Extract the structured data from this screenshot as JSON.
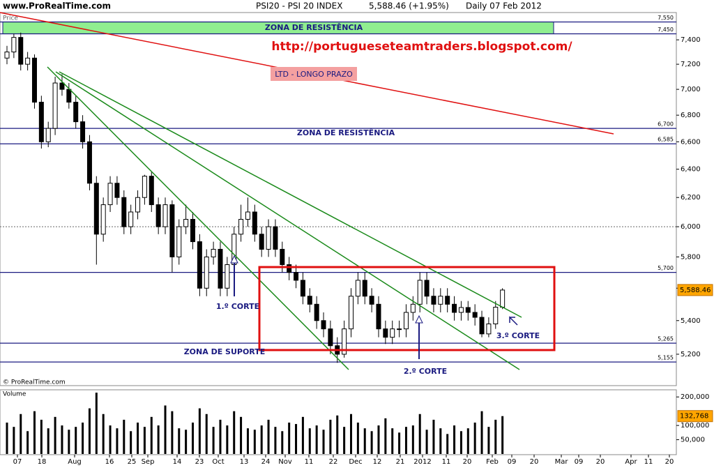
{
  "header": {
    "site": "www.ProRealTime.com",
    "instrument": "PSI20 - PSI 20 INDEX",
    "quote": "5,588.46 (+1.95%)",
    "period": "Daily  07 Feb 2012"
  },
  "chart_data": {
    "type": "candlestick",
    "log_scale": true,
    "panel_label": "Price",
    "volume_label": "Volume",
    "copyright": "© ProRealTime.com",
    "ylim": [
      5020,
      7630
    ],
    "yticks": [
      {
        "value": 5200,
        "label": "5,200"
      },
      {
        "value": 5400,
        "label": "5,400"
      },
      {
        "value": 5600,
        "label": "5,600"
      },
      {
        "value": 5800,
        "label": "5,800"
      },
      {
        "value": 6000,
        "label": "6,000"
      },
      {
        "value": 6200,
        "label": "6,200"
      },
      {
        "value": 6400,
        "label": "6,400"
      },
      {
        "value": 6600,
        "label": "6,600"
      },
      {
        "value": 6800,
        "label": "6,800"
      },
      {
        "value": 7000,
        "label": "7,000"
      },
      {
        "value": 7200,
        "label": "7,200"
      },
      {
        "value": 7400,
        "label": "7,400"
      }
    ],
    "xticks": [
      "07",
      "18",
      "Aug",
      "16",
      "25",
      "Sep",
      "14",
      "23",
      "Oct",
      "13",
      "24",
      "Nov",
      "11",
      "22",
      "Dec",
      "12",
      "21",
      "2012",
      "11",
      "20",
      "Feb",
      "09",
      "20",
      "Mar",
      "09",
      "20",
      "Apr",
      "11",
      "20"
    ],
    "open": [
      7250,
      7300,
      7420,
      7200,
      7250,
      6900,
      6600,
      6700,
      7050,
      7000,
      6900,
      6750,
      6600,
      6300,
      5950,
      6150,
      6300,
      6200,
      6000,
      6100,
      6200,
      6350,
      6150,
      6000,
      6150,
      5800,
      6000,
      6050,
      5900,
      5600,
      5800,
      5850,
      5600,
      5750,
      5950,
      6050,
      6100,
      5950,
      5850,
      6000,
      5850,
      5750,
      5700,
      5650,
      5550,
      5500,
      5400,
      5350,
      5250,
      5200,
      5350,
      5550,
      5650,
      5550,
      5500,
      5350,
      5300,
      5350,
      5350,
      5450,
      5500,
      5650,
      5550,
      5500,
      5550,
      5500,
      5450,
      5480,
      5450,
      5420,
      5320,
      5380,
      5482
    ],
    "high": [
      7350,
      7450,
      7460,
      7300,
      7280,
      6950,
      6750,
      7100,
      7120,
      7050,
      6950,
      6800,
      6650,
      6350,
      6200,
      6350,
      6350,
      6250,
      6150,
      6250,
      6360,
      6380,
      6200,
      6200,
      6180,
      6050,
      6150,
      6100,
      5950,
      5850,
      5900,
      5900,
      5800,
      6000,
      6150,
      6200,
      6150,
      6000,
      6050,
      6050,
      5900,
      5800,
      5750,
      5700,
      5600,
      5550,
      5450,
      5400,
      5300,
      5400,
      5600,
      5700,
      5700,
      5600,
      5550,
      5400,
      5400,
      5400,
      5500,
      5550,
      5700,
      5700,
      5600,
      5600,
      5600,
      5550,
      5520,
      5520,
      5500,
      5460,
      5420,
      5520,
      5600
    ],
    "low": [
      7200,
      7250,
      7150,
      7150,
      6850,
      6550,
      6560,
      6650,
      6950,
      6850,
      6700,
      6550,
      6250,
      5750,
      5900,
      6100,
      6150,
      5950,
      5950,
      6050,
      6150,
      6100,
      5950,
      5950,
      5700,
      5750,
      5950,
      5850,
      5550,
      5550,
      5750,
      5550,
      5550,
      5700,
      5900,
      6000,
      5900,
      5800,
      5800,
      5800,
      5700,
      5650,
      5600,
      5500,
      5450,
      5350,
      5300,
      5200,
      5150,
      5180,
      5300,
      5500,
      5500,
      5450,
      5300,
      5260,
      5260,
      5300,
      5300,
      5400,
      5450,
      5500,
      5450,
      5450,
      5450,
      5400,
      5400,
      5400,
      5370,
      5300,
      5300,
      5350,
      5470
    ],
    "close": [
      7300,
      7420,
      7200,
      7250,
      6900,
      6600,
      6700,
      7050,
      7000,
      6900,
      6750,
      6600,
      6300,
      5950,
      6150,
      6300,
      6200,
      6000,
      6100,
      6200,
      6350,
      6150,
      6000,
      6150,
      5800,
      6000,
      6050,
      5900,
      5600,
      5800,
      5850,
      5600,
      5750,
      5950,
      6050,
      6100,
      5950,
      5850,
      6000,
      5850,
      5750,
      5700,
      5650,
      5550,
      5500,
      5400,
      5350,
      5250,
      5200,
      5350,
      5550,
      5650,
      5550,
      5500,
      5350,
      5300,
      5350,
      5350,
      5450,
      5500,
      5650,
      5550,
      5500,
      5550,
      5500,
      5450,
      5480,
      5450,
      5420,
      5320,
      5380,
      5482,
      5588.46
    ],
    "volume": [
      110000,
      95000,
      140000,
      80000,
      150000,
      120000,
      90000,
      130000,
      100000,
      85000,
      95000,
      110000,
      160000,
      215000,
      140000,
      100000,
      90000,
      120000,
      80000,
      110000,
      95000,
      130000,
      100000,
      170000,
      150000,
      90000,
      85000,
      110000,
      160000,
      140000,
      95000,
      120000,
      100000,
      150000,
      130000,
      90000,
      85000,
      100000,
      120000,
      95000,
      80000,
      110000,
      105000,
      130000,
      90000,
      100000,
      85000,
      120000,
      135000,
      95000,
      140000,
      110000,
      90000,
      80000,
      100000,
      125000,
      90000,
      75000,
      95000,
      100000,
      140000,
      85000,
      120000,
      90000,
      70000,
      100000,
      80000,
      90000,
      110000,
      150000,
      95000,
      120000,
      132768
    ],
    "vlim": [
      0,
      225000
    ],
    "vticks": [
      {
        "value": 50000,
        "label": "50,000"
      },
      {
        "value": 100000,
        "label": "100,000"
      },
      {
        "value": 200000,
        "label": "200,000"
      }
    ],
    "last_price": {
      "value": 5588.46,
      "label": "5,588.46"
    },
    "last_volume": {
      "value": 132768,
      "label": "132,768"
    },
    "reference_line": 6000,
    "levels": [
      {
        "value": 7550,
        "label": "7,550"
      },
      {
        "value": 7450,
        "label": "7,450"
      },
      {
        "value": 6700,
        "label": "6,700"
      },
      {
        "value": 6585,
        "label": "6,585"
      },
      {
        "value": 5700,
        "label": "5,700"
      },
      {
        "value": 5265,
        "label": "5,265"
      },
      {
        "value": 5155,
        "label": "5,155"
      }
    ],
    "annotations": {
      "zone_top": "ZONA DE RESISTÊNCIA",
      "zone_mid": "ZONA DE RESISTÊNCIA",
      "zone_support": "ZONA DE SUPORTE",
      "url": "http://portugueseteamtraders.blogspot.com/",
      "ltd": "LTD - LONGO PRAZO",
      "cut1": "1.º CORTE",
      "cut2": "2.º CORTE",
      "cut3": "3.º CORTE"
    }
  }
}
